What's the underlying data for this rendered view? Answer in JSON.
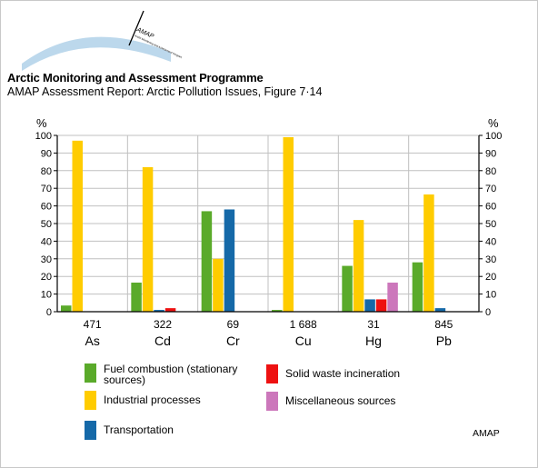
{
  "header": {
    "logo_text": "AMAP",
    "logo_subtext": "Arctic Monitoring and Assessment Programme",
    "title": "Arctic Monitoring and Assessment Programme",
    "subtitle": "AMAP Assessment Report: Arctic Pollution Issues, Figure 7·14"
  },
  "chart_data": {
    "type": "bar",
    "title": "",
    "ylabel_left": "%",
    "ylabel_right": "%",
    "ylim": [
      0,
      100
    ],
    "yticks": [
      0,
      10,
      20,
      30,
      40,
      50,
      60,
      70,
      80,
      90,
      100
    ],
    "grid": "horizontal",
    "categories": [
      "As",
      "Cd",
      "Cr",
      "Cu",
      "Hg",
      "Pb"
    ],
    "category_totals": [
      "471",
      "322",
      "69",
      "1 688",
      "31",
      "845"
    ],
    "series": [
      {
        "name": "Fuel combustion (stationary sources)",
        "color": "#5aaa2a",
        "values": [
          3.5,
          16.5,
          57,
          1,
          26,
          28
        ]
      },
      {
        "name": "Industrial processes",
        "color": "#ffcc00",
        "values": [
          97,
          82,
          30,
          99,
          52,
          66.5
        ]
      },
      {
        "name": "Transportation",
        "color": "#1569a8",
        "values": [
          0,
          1,
          58,
          0,
          7,
          2
        ]
      },
      {
        "name": "Solid waste incineration",
        "color": "#ee1111",
        "values": [
          0,
          2,
          0,
          0,
          7,
          0
        ]
      },
      {
        "name": "Miscellaneous sources",
        "color": "#cc77bb",
        "values": [
          0,
          0,
          0,
          0,
          16.5,
          0
        ]
      }
    ],
    "legend_position": "bottom"
  },
  "credit": "AMAP"
}
